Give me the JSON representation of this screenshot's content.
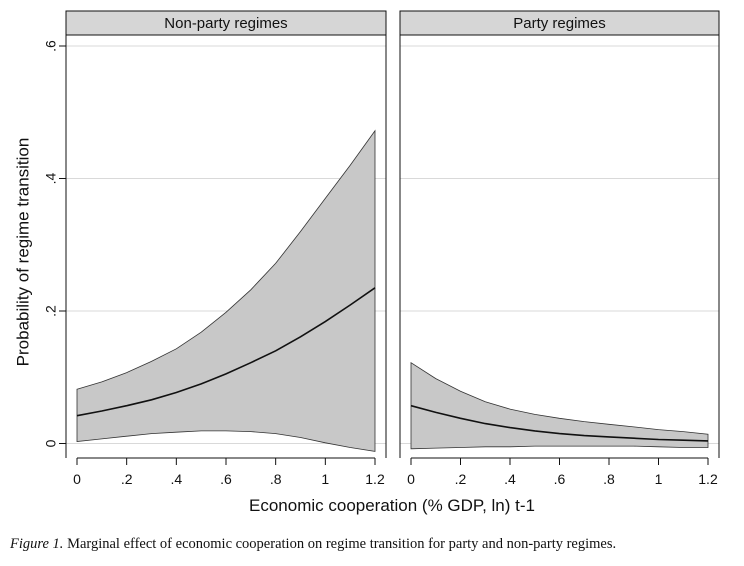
{
  "chart_data": {
    "type": "area",
    "facets": [
      {
        "title": "Non-party regimes",
        "x": [
          0,
          0.1,
          0.2,
          0.3,
          0.4,
          0.5,
          0.6,
          0.7,
          0.8,
          0.9,
          1.0,
          1.1,
          1.2
        ],
        "estimate": [
          0.042,
          0.049,
          0.057,
          0.066,
          0.077,
          0.09,
          0.105,
          0.122,
          0.14,
          0.161,
          0.184,
          0.209,
          0.235
        ],
        "ci_lower": [
          0.003,
          0.007,
          0.011,
          0.015,
          0.017,
          0.019,
          0.019,
          0.018,
          0.015,
          0.009,
          0.001,
          -0.006,
          -0.012
        ],
        "ci_upper": [
          0.082,
          0.093,
          0.107,
          0.124,
          0.143,
          0.168,
          0.198,
          0.232,
          0.272,
          0.32,
          0.37,
          0.42,
          0.472
        ]
      },
      {
        "title": "Party regimes",
        "x": [
          0,
          0.1,
          0.2,
          0.3,
          0.4,
          0.5,
          0.6,
          0.7,
          0.8,
          0.9,
          1.0,
          1.1,
          1.2
        ],
        "estimate": [
          0.057,
          0.047,
          0.038,
          0.03,
          0.024,
          0.019,
          0.015,
          0.012,
          0.01,
          0.008,
          0.006,
          0.005,
          0.004
        ],
        "ci_lower": [
          -0.008,
          -0.007,
          -0.006,
          -0.005,
          -0.005,
          -0.004,
          -0.004,
          -0.004,
          -0.004,
          -0.004,
          -0.005,
          -0.006,
          -0.006
        ],
        "ci_upper": [
          0.122,
          0.098,
          0.079,
          0.063,
          0.052,
          0.044,
          0.038,
          0.033,
          0.029,
          0.025,
          0.021,
          0.018,
          0.014
        ]
      }
    ],
    "xlabel": "Economic cooperation (% GDP, ln) t-1",
    "ylabel": "Probability of regime transition",
    "xticks": [
      0,
      0.2,
      0.4,
      0.6,
      0.8,
      1,
      1.2
    ],
    "xtick_labels": [
      "0",
      ".2",
      ".4",
      ".6",
      ".8",
      "1",
      "1.2"
    ],
    "yticks": [
      0,
      0.2,
      0.4,
      0.6
    ],
    "ytick_labels": [
      "0",
      ".2",
      ".4",
      ".6"
    ],
    "xlim": [
      0,
      1.2
    ],
    "ylim": [
      -0.02,
      0.6
    ],
    "grid": true,
    "colors": {
      "band": "#c8c8c8",
      "line": "#111111",
      "grid": "#d9d9d9",
      "header": "#d6d6d6"
    }
  },
  "caption": {
    "label": "Figure 1.",
    "text": "Marginal effect of economic cooperation on regime transition for party and non-party regimes."
  }
}
